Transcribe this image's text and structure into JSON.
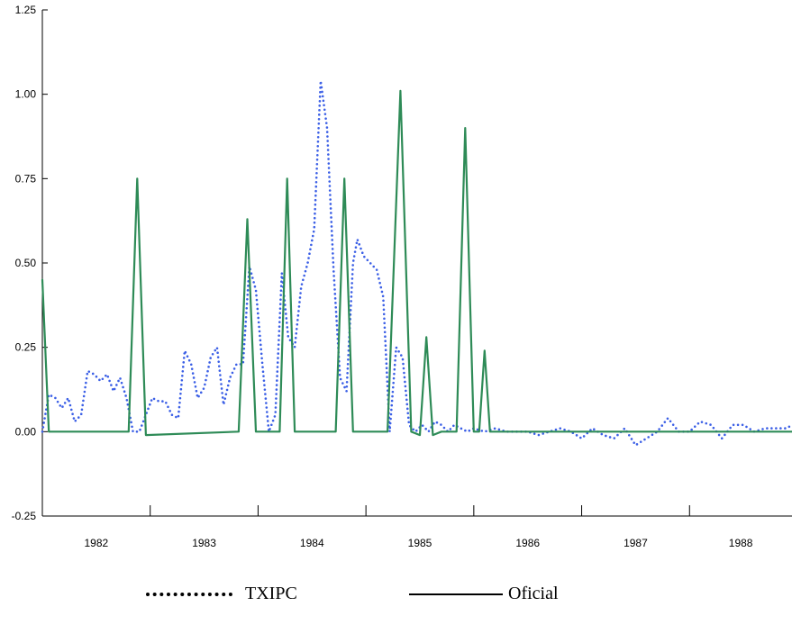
{
  "chart_data": {
    "type": "line",
    "ylim": [
      -0.25,
      1.25
    ],
    "y_ticks": [
      "1.25",
      "1.00",
      "0.75",
      "0.50",
      "0.25",
      "0.00",
      "-0.25"
    ],
    "y_tick_values": [
      1.25,
      1.0,
      0.75,
      0.5,
      0.25,
      0.0,
      -0.25
    ],
    "x_categories": [
      "1982",
      "1983",
      "1984",
      "1985",
      "1986",
      "1987",
      "1988"
    ],
    "xlim": [
      1982.0,
      1988.95
    ],
    "x_year_boundaries": [
      1983,
      1984,
      1985,
      1986,
      1987,
      1988
    ],
    "legend": {
      "position": "bottom"
    },
    "series": [
      {
        "name": "TXIPC",
        "style": "dotted",
        "color": "#3b5fe6",
        "x": [
          1982.0,
          1982.06,
          1982.12,
          1982.18,
          1982.24,
          1982.3,
          1982.36,
          1982.42,
          1982.48,
          1982.54,
          1982.6,
          1982.66,
          1982.72,
          1982.78,
          1982.84,
          1982.9,
          1982.96,
          1983.02,
          1983.08,
          1983.14,
          1983.2,
          1983.26,
          1983.32,
          1983.38,
          1983.44,
          1983.5,
          1983.56,
          1983.62,
          1983.68,
          1983.74,
          1983.8,
          1983.86,
          1983.92,
          1983.98,
          1984.04,
          1984.1,
          1984.16,
          1984.22,
          1984.28,
          1984.34,
          1984.4,
          1984.46,
          1984.52,
          1984.58,
          1984.64,
          1984.7,
          1984.76,
          1984.82,
          1984.88,
          1984.92,
          1984.98,
          1985.04,
          1985.1,
          1985.16,
          1985.22,
          1985.28,
          1985.34,
          1985.4,
          1985.46,
          1985.52,
          1985.58,
          1985.64,
          1985.7,
          1985.76,
          1985.82,
          1985.88,
          1985.94,
          1986.0,
          1986.1,
          1986.2,
          1986.3,
          1986.4,
          1986.5,
          1986.6,
          1986.7,
          1986.8,
          1986.9,
          1987.0,
          1987.1,
          1987.2,
          1987.3,
          1987.4,
          1987.5,
          1987.6,
          1987.7,
          1987.8,
          1987.9,
          1988.0,
          1988.1,
          1988.2,
          1988.3,
          1988.4,
          1988.5,
          1988.6,
          1988.7,
          1988.8,
          1988.9,
          1988.95
        ],
        "values": [
          0.0,
          0.11,
          0.1,
          0.07,
          0.1,
          0.03,
          0.05,
          0.18,
          0.17,
          0.15,
          0.17,
          0.12,
          0.16,
          0.1,
          0.0,
          0.0,
          0.05,
          0.1,
          0.09,
          0.09,
          0.05,
          0.04,
          0.24,
          0.2,
          0.1,
          0.13,
          0.22,
          0.25,
          0.08,
          0.16,
          0.2,
          0.2,
          0.49,
          0.42,
          0.2,
          0.0,
          0.05,
          0.47,
          0.28,
          0.25,
          0.43,
          0.5,
          0.6,
          1.04,
          0.9,
          0.48,
          0.16,
          0.12,
          0.5,
          0.57,
          0.52,
          0.5,
          0.48,
          0.4,
          0.0,
          0.25,
          0.22,
          0.02,
          0.0,
          0.02,
          0.0,
          0.03,
          0.02,
          0.0,
          0.02,
          0.01,
          0.0,
          0.01,
          0.0,
          0.01,
          0.0,
          0.0,
          0.0,
          -0.01,
          0.0,
          0.01,
          0.0,
          -0.02,
          0.01,
          -0.01,
          -0.02,
          0.01,
          -0.04,
          -0.02,
          0.0,
          0.04,
          0.0,
          0.0,
          0.03,
          0.02,
          -0.02,
          0.02,
          0.02,
          0.0,
          0.01,
          0.01,
          0.01,
          0.02
        ]
      },
      {
        "name": "Oficial",
        "style": "solid",
        "color": "#2e8b57",
        "x": [
          1982.0,
          1982.06,
          1982.8,
          1982.88,
          1982.96,
          1983.82,
          1983.9,
          1983.98,
          1984.2,
          1984.27,
          1984.34,
          1984.72,
          1984.8,
          1984.88,
          1985.2,
          1985.32,
          1985.42,
          1985.5,
          1985.56,
          1985.62,
          1985.7,
          1985.84,
          1985.92,
          1986.0,
          1986.05,
          1986.1,
          1986.15,
          1988.95
        ],
        "values": [
          0.45,
          0.0,
          0.0,
          0.75,
          -0.01,
          0.0,
          0.63,
          0.0,
          0.0,
          0.75,
          0.0,
          0.0,
          0.75,
          0.0,
          0.0,
          1.01,
          0.0,
          -0.01,
          0.28,
          -0.01,
          0.0,
          0.0,
          0.9,
          0.0,
          0.0,
          0.24,
          0.0,
          0.0
        ]
      }
    ]
  }
}
